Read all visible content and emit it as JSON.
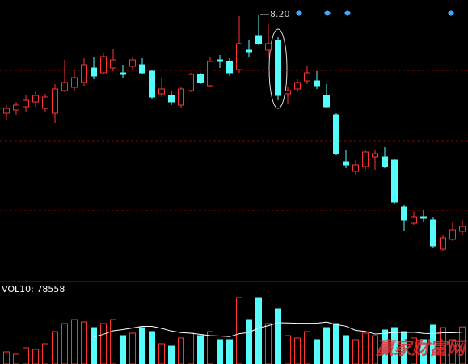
{
  "chart_data": [
    {
      "type": "candlestick",
      "open": [
        7.59,
        7.61,
        7.63,
        7.66,
        7.62,
        7.59,
        7.73,
        7.75,
        7.78,
        7.87,
        7.84,
        7.87,
        7.84,
        7.88,
        7.89,
        7.85,
        7.71,
        7.7,
        7.64,
        7.73,
        7.83,
        7.76,
        7.92,
        7.91,
        7.86,
        7.98,
        8.07,
        7.98,
        8.04,
        7.71,
        7.74,
        7.79,
        7.79,
        7.7,
        7.58,
        7.29,
        7.23,
        7.26,
        7.32,
        7.32,
        7.3,
        7.01,
        6.91,
        6.95,
        6.93,
        6.75,
        6.81,
        6.86
      ],
      "high": [
        7.64,
        7.66,
        7.7,
        7.73,
        7.71,
        7.77,
        7.92,
        7.86,
        7.93,
        7.94,
        7.96,
        7.99,
        7.89,
        7.94,
        7.93,
        7.86,
        7.81,
        7.73,
        7.75,
        7.84,
        7.84,
        7.94,
        7.95,
        7.93,
        8.19,
        8.04,
        8.2,
        8.14,
        8.06,
        7.75,
        7.8,
        7.88,
        7.85,
        7.77,
        7.59,
        7.36,
        7.3,
        7.36,
        7.36,
        7.38,
        7.31,
        7.02,
        6.98,
        6.99,
        6.95,
        6.84,
        6.92,
        6.93
      ],
      "low": [
        7.55,
        7.58,
        7.6,
        7.63,
        7.6,
        7.53,
        7.72,
        7.73,
        7.76,
        7.8,
        7.83,
        7.85,
        7.81,
        7.86,
        7.83,
        7.68,
        7.69,
        7.64,
        7.62,
        7.72,
        7.77,
        7.75,
        7.87,
        7.82,
        7.84,
        7.94,
        8.01,
        7.94,
        7.67,
        7.65,
        7.72,
        7.77,
        7.74,
        7.62,
        7.33,
        7.25,
        7.21,
        7.24,
        7.24,
        7.25,
        7.03,
        6.86,
        6.9,
        6.92,
        6.76,
        6.74,
        6.8,
        6.84
      ],
      "close": [
        7.62,
        7.64,
        7.67,
        7.7,
        7.69,
        7.74,
        7.78,
        7.81,
        7.89,
        7.82,
        7.94,
        7.92,
        7.83,
        7.92,
        7.84,
        7.69,
        7.74,
        7.66,
        7.74,
        7.83,
        7.78,
        7.91,
        7.91,
        7.84,
        8.02,
        7.97,
        8.02,
        8.02,
        7.7,
        7.73,
        7.78,
        7.84,
        7.76,
        7.63,
        7.34,
        7.27,
        7.27,
        7.35,
        7.34,
        7.26,
        7.04,
        6.93,
        6.95,
        6.94,
        6.77,
        6.82,
        6.87,
        6.89
      ],
      "ylim": [
        6.565,
        8.29
      ],
      "grid_levels": [
        7.855,
        7.42,
        6.99
      ],
      "up_color": "#ff3232",
      "down_color": "#54fcfc",
      "grid_color": "#8c0000",
      "annotation": "8.20"
    },
    {
      "type": "bar",
      "values": [
        30000,
        24000,
        40000,
        36000,
        50000,
        80000,
        100000,
        110000,
        104000,
        90000,
        100000,
        110000,
        70000,
        76000,
        90000,
        80000,
        50000,
        44000,
        64000,
        76000,
        70000,
        80000,
        60000,
        60000,
        164000,
        110000,
        164000,
        100000,
        136000,
        70000,
        64000,
        80000,
        60000,
        90000,
        100000,
        70000,
        60000,
        76000,
        70000,
        84000,
        90000,
        80000,
        64000,
        60000,
        96000,
        90000,
        60000,
        91580
      ],
      "ylim": [
        0,
        200000
      ],
      "series": [
        {
          "name": "VOL10:",
          "color": "#ffffff",
          "values": [
            null,
            null,
            null,
            null,
            null,
            null,
            null,
            null,
            null,
            66400,
            73400,
            82000,
            85000,
            89000,
            93000,
            93000,
            88000,
            81400,
            77400,
            76000,
            73000,
            70000,
            69000,
            67400,
            74800,
            77800,
            89200,
            94800,
            102000,
            101400,
            100800,
            100800,
            100800,
            103800,
            97400,
            93400,
            83000,
            80600,
            74000,
            75400,
            78000,
            78000,
            78400,
            75400,
            75000,
            77000,
            77000,
            78558
          ]
        }
      ]
    }
  ],
  "watermark": "赢家财富网"
}
